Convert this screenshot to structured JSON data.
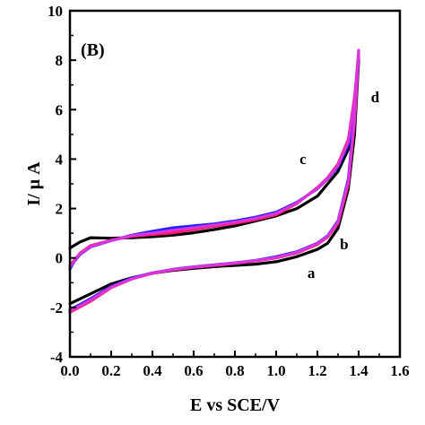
{
  "chart_data": {
    "type": "line",
    "title": "",
    "panel_label": "(B)",
    "xlabel": "E vs SCE/V",
    "ylabel": "I/ μ A",
    "xlim": [
      0.0,
      1.6
    ],
    "ylim": [
      -4,
      10
    ],
    "xticks": [
      0.0,
      0.2,
      0.4,
      0.6,
      0.8,
      1.0,
      1.2,
      1.4,
      1.6
    ],
    "xtick_labels": [
      "0.0",
      "0.2",
      "0.4",
      "0.6",
      "0.8",
      "1.0",
      "1.2",
      "1.4",
      "1.6"
    ],
    "yticks": [
      -4,
      -2,
      0,
      2,
      4,
      6,
      8,
      10
    ],
    "ytick_labels": [
      "-4",
      "-2",
      "0",
      "2",
      "4",
      "6",
      "8",
      "10"
    ],
    "grid": false,
    "legend": "none",
    "annotations": [
      {
        "text": "a",
        "x": 1.17,
        "y": -0.8
      },
      {
        "text": "b",
        "x": 1.33,
        "y": 0.35
      },
      {
        "text": "c",
        "x": 1.13,
        "y": 3.8
      },
      {
        "text": "d",
        "x": 1.48,
        "y": 6.3
      }
    ],
    "series": [
      {
        "color": "#000000",
        "points": [
          [
            0.0,
            -1.85
          ],
          [
            0.1,
            -1.45
          ],
          [
            0.2,
            -1.05
          ],
          [
            0.3,
            -0.8
          ],
          [
            0.4,
            -0.62
          ],
          [
            0.5,
            -0.5
          ],
          [
            0.6,
            -0.42
          ],
          [
            0.7,
            -0.35
          ],
          [
            0.8,
            -0.3
          ],
          [
            0.9,
            -0.25
          ],
          [
            1.0,
            -0.15
          ],
          [
            1.1,
            0.05
          ],
          [
            1.2,
            0.35
          ],
          [
            1.25,
            0.6
          ],
          [
            1.3,
            1.2
          ],
          [
            1.35,
            2.8
          ],
          [
            1.38,
            5.0
          ],
          [
            1.4,
            8.0
          ],
          [
            1.38,
            6.0
          ],
          [
            1.35,
            4.4
          ],
          [
            1.3,
            3.5
          ],
          [
            1.25,
            3.0
          ],
          [
            1.2,
            2.5
          ],
          [
            1.1,
            2.0
          ],
          [
            1.0,
            1.7
          ],
          [
            0.9,
            1.5
          ],
          [
            0.8,
            1.3
          ],
          [
            0.7,
            1.15
          ],
          [
            0.6,
            1.02
          ],
          [
            0.5,
            0.92
          ],
          [
            0.4,
            0.86
          ],
          [
            0.3,
            0.82
          ],
          [
            0.2,
            0.8
          ],
          [
            0.1,
            0.82
          ],
          [
            0.05,
            0.65
          ],
          [
            0.02,
            0.5
          ],
          [
            0.0,
            0.4
          ]
        ]
      },
      {
        "color": "#ff1a66",
        "points": [
          [
            0.0,
            -2.2
          ],
          [
            0.1,
            -1.75
          ],
          [
            0.2,
            -1.2
          ],
          [
            0.3,
            -0.85
          ],
          [
            0.4,
            -0.62
          ],
          [
            0.5,
            -0.48
          ],
          [
            0.6,
            -0.38
          ],
          [
            0.7,
            -0.3
          ],
          [
            0.8,
            -0.22
          ],
          [
            0.9,
            -0.12
          ],
          [
            1.0,
            0.0
          ],
          [
            1.1,
            0.2
          ],
          [
            1.2,
            0.55
          ],
          [
            1.25,
            0.85
          ],
          [
            1.3,
            1.4
          ],
          [
            1.35,
            3.0
          ],
          [
            1.38,
            5.5
          ],
          [
            1.4,
            8.2
          ],
          [
            1.38,
            6.5
          ],
          [
            1.35,
            4.8
          ],
          [
            1.3,
            3.8
          ],
          [
            1.25,
            3.25
          ],
          [
            1.2,
            2.85
          ],
          [
            1.1,
            2.2
          ],
          [
            1.0,
            1.75
          ],
          [
            0.9,
            1.55
          ],
          [
            0.8,
            1.4
          ],
          [
            0.7,
            1.28
          ],
          [
            0.6,
            1.15
          ],
          [
            0.5,
            1.02
          ],
          [
            0.4,
            0.95
          ],
          [
            0.3,
            0.88
          ],
          [
            0.2,
            0.72
          ],
          [
            0.1,
            0.5
          ],
          [
            0.05,
            0.2
          ],
          [
            0.02,
            -0.1
          ],
          [
            0.0,
            -0.3
          ]
        ]
      },
      {
        "color": "#2222ff",
        "points": [
          [
            0.0,
            -2.1
          ],
          [
            0.1,
            -1.65
          ],
          [
            0.2,
            -1.15
          ],
          [
            0.3,
            -0.82
          ],
          [
            0.4,
            -0.6
          ],
          [
            0.5,
            -0.46
          ],
          [
            0.6,
            -0.36
          ],
          [
            0.7,
            -0.28
          ],
          [
            0.8,
            -0.2
          ],
          [
            0.9,
            -0.1
          ],
          [
            1.0,
            0.05
          ],
          [
            1.1,
            0.25
          ],
          [
            1.2,
            0.6
          ],
          [
            1.25,
            0.9
          ],
          [
            1.3,
            1.5
          ],
          [
            1.35,
            3.2
          ],
          [
            1.38,
            5.8
          ],
          [
            1.4,
            8.3
          ],
          [
            1.38,
            6.2
          ],
          [
            1.35,
            4.6
          ],
          [
            1.3,
            3.7
          ],
          [
            1.25,
            3.2
          ],
          [
            1.2,
            2.8
          ],
          [
            1.1,
            2.25
          ],
          [
            1.0,
            1.85
          ],
          [
            0.9,
            1.65
          ],
          [
            0.8,
            1.5
          ],
          [
            0.7,
            1.38
          ],
          [
            0.6,
            1.3
          ],
          [
            0.5,
            1.22
          ],
          [
            0.4,
            1.08
          ],
          [
            0.3,
            0.92
          ],
          [
            0.2,
            0.7
          ],
          [
            0.1,
            0.45
          ],
          [
            0.05,
            0.15
          ],
          [
            0.02,
            -0.15
          ],
          [
            0.0,
            -0.45
          ]
        ]
      },
      {
        "color": "#dd33dd",
        "points": [
          [
            0.0,
            -2.15
          ],
          [
            0.1,
            -1.7
          ],
          [
            0.2,
            -1.18
          ],
          [
            0.3,
            -0.84
          ],
          [
            0.4,
            -0.61
          ],
          [
            0.5,
            -0.47
          ],
          [
            0.6,
            -0.37
          ],
          [
            0.7,
            -0.29
          ],
          [
            0.8,
            -0.21
          ],
          [
            0.9,
            -0.11
          ],
          [
            1.0,
            0.02
          ],
          [
            1.1,
            0.22
          ],
          [
            1.2,
            0.58
          ],
          [
            1.25,
            0.88
          ],
          [
            1.3,
            1.45
          ],
          [
            1.35,
            3.1
          ],
          [
            1.38,
            5.6
          ],
          [
            1.4,
            8.4
          ],
          [
            1.38,
            6.4
          ],
          [
            1.35,
            4.7
          ],
          [
            1.3,
            3.75
          ],
          [
            1.25,
            3.22
          ],
          [
            1.2,
            2.82
          ],
          [
            1.1,
            2.22
          ],
          [
            1.0,
            1.8
          ],
          [
            0.9,
            1.6
          ],
          [
            0.8,
            1.45
          ],
          [
            0.7,
            1.33
          ],
          [
            0.6,
            1.22
          ],
          [
            0.5,
            1.12
          ],
          [
            0.4,
            1.0
          ],
          [
            0.3,
            0.9
          ],
          [
            0.2,
            0.71
          ],
          [
            0.1,
            0.47
          ],
          [
            0.05,
            0.18
          ],
          [
            0.02,
            -0.12
          ],
          [
            0.0,
            -0.38
          ]
        ]
      }
    ]
  }
}
